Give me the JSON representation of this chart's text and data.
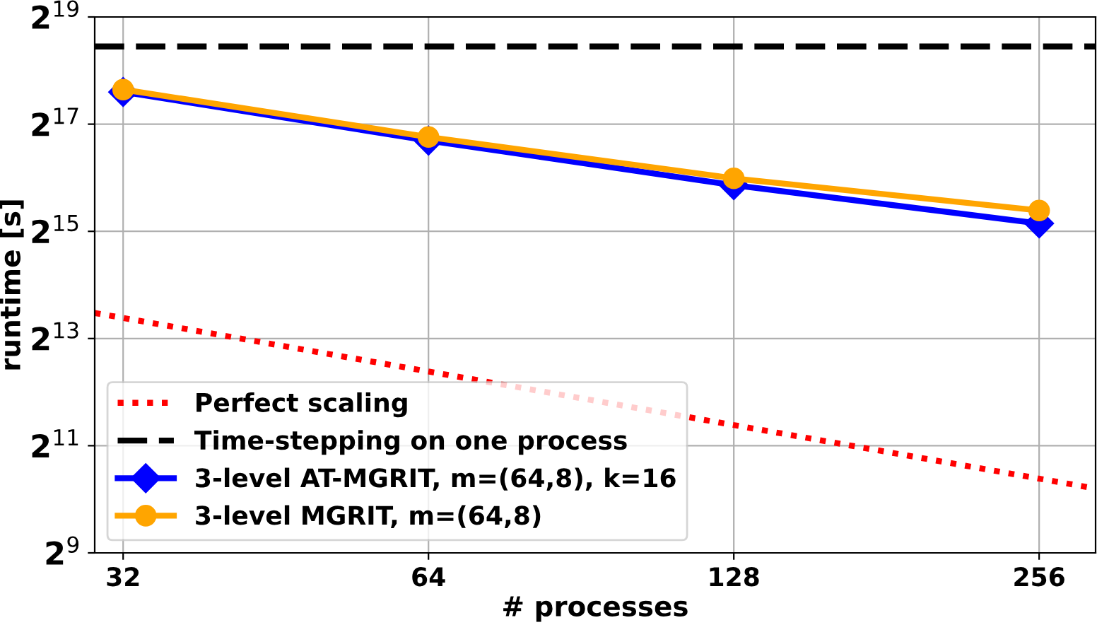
{
  "chart_data": {
    "type": "line",
    "xlabel": "# processes",
    "ylabel": "runtime [s]",
    "log": "xy",
    "grid": true,
    "legend": "bottom left",
    "xlim": [
      30,
      291
    ],
    "xticks": [
      32,
      64,
      128,
      256
    ],
    "ylim": [
      512,
      524288
    ],
    "yticks": [
      {
        "value": 512,
        "label": "2$^{9}$"
      },
      {
        "value": 2048,
        "label": "2$^{11}$"
      },
      {
        "value": 8192,
        "label": "2$^{13}$"
      },
      {
        "value": 32768,
        "label": "2$^{15}$"
      },
      {
        "value": 131072,
        "label": "2$^{17}$"
      },
      {
        "value": 524288,
        "label": "2$^{19}$"
      }
    ],
    "series": [
      {
        "name": "Perfect scaling",
        "color": "#ff0000",
        "line_style": "dotted",
        "marker": "none",
        "x": [
          30,
          291
        ],
        "values": [
          11400,
          1177
        ]
      },
      {
        "name": "Time-stepping on one process",
        "color": "#000000",
        "line_style": "dashed",
        "marker": "none",
        "x": [
          30,
          291
        ],
        "values": [
          358000,
          358000
        ]
      },
      {
        "name": "3-level AT-MGRIT, m=(64,8), k=16",
        "color": "#0000ff",
        "line_style": "solid",
        "marker": "diamond",
        "x": [
          32,
          64,
          128,
          256
        ],
        "values": [
          198600,
          106000,
          59500,
          36300
        ]
      },
      {
        "name": "3-level MGRIT, m=(64,8)",
        "color": "#ffa500",
        "line_style": "solid",
        "marker": "circle",
        "x": [
          32,
          64,
          128,
          256
        ],
        "values": [
          205000,
          111000,
          65000,
          42900
        ]
      }
    ]
  }
}
